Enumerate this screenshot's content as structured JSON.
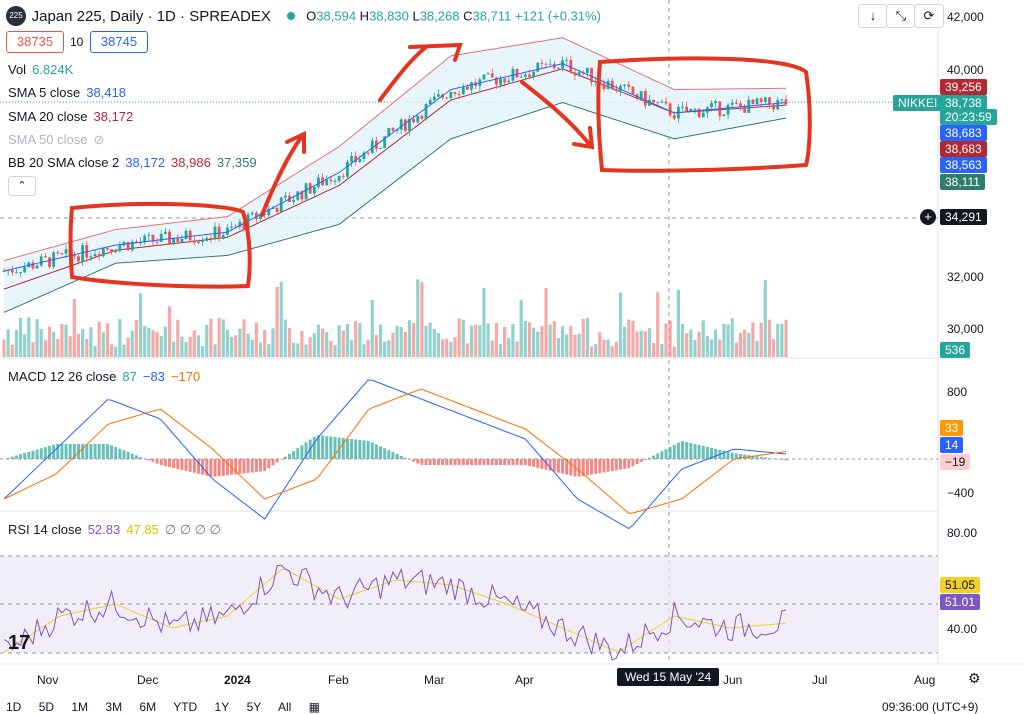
{
  "header": {
    "symbol_badge": "225",
    "title": "Japan 225, Daily · 1D · SPREADEX",
    "ohlc": [
      {
        "label": "O",
        "value": "38,594"
      },
      {
        "label": "H",
        "value": "38,830"
      },
      {
        "label": "L",
        "value": "38,268"
      },
      {
        "label": "C",
        "value": "38,711"
      }
    ],
    "change": "+121 (+0.31%)",
    "bid": "38735",
    "spread": "10",
    "ask": "38745"
  },
  "indicators": {
    "vol": {
      "label": "Vol",
      "value": "6.824K"
    },
    "sma5": {
      "label": "SMA 5 close",
      "value": "38,418"
    },
    "sma20": {
      "label": "SMA 20 close",
      "value": "38,172"
    },
    "sma50": {
      "label": "SMA 50 close"
    },
    "bb": {
      "label": "BB 20 SMA close 2",
      "basis": "38,172",
      "upper": "38,986",
      "lower": "37,359"
    },
    "macd": {
      "label": "MACD 12 26 close",
      "hist": "87",
      "macd": "−83",
      "signal": "−170"
    },
    "rsi": {
      "label": "RSI 14 close",
      "rsi": "52.83",
      "ma": "47.85",
      "extra": "∅ ∅ ∅ ∅"
    }
  },
  "price_axis": {
    "ticks": [
      "42,000",
      "40,000",
      "32,000",
      "30,000"
    ],
    "labels": {
      "bb_upper": "39,256",
      "nikkei": "NIKKEI",
      "last": "38,738",
      "countdown": "20:23:59",
      "sma5": "38,683",
      "sma20": "38,683",
      "sma_other": "38,563",
      "bb_lower": "38,111",
      "crosshair": "34,291",
      "volume": "536"
    }
  },
  "macd_axis": {
    "ticks": [
      "800",
      "−400"
    ],
    "labels": {
      "hist": "33",
      "macd": "14",
      "signal": "−19"
    }
  },
  "rsi_axis": {
    "ticks": [
      "80.00",
      "40.00"
    ],
    "labels": {
      "ma": "51.05",
      "rsi": "51.01"
    }
  },
  "time_axis": {
    "labels": [
      "Nov",
      "Dec",
      "2024",
      "Feb",
      "Mar",
      "Apr",
      "Jun",
      "Jul",
      "Aug"
    ],
    "crosshair": "Wed 15 May '24"
  },
  "bottom_bar": {
    "ranges": [
      "1D",
      "5D",
      "1M",
      "3M",
      "6M",
      "YTD",
      "1Y",
      "5Y",
      "All"
    ],
    "time": "09:36:00 (UTC+9)"
  },
  "colors": {
    "up": "#26a69a",
    "down": "#ef5350",
    "sma5": "#2962ff",
    "sma20": "#b22833",
    "bb": "#2e7d6b",
    "annotation": "#e5341f",
    "rsi": "#7e57c2",
    "rsi_ma": "#f2d024"
  },
  "chart_data": {
    "type": "line",
    "title": "Japan 225, Daily · 1D · SPREADEX",
    "xlabel": "",
    "ylabel": "",
    "ylim": [
      29500,
      42500
    ],
    "x": [
      "Nov",
      "Dec",
      "2024",
      "Feb",
      "Mar",
      "Apr",
      "May",
      "Jun"
    ],
    "series": [
      {
        "name": "SMA 5 close",
        "values": [
          32200,
          33200,
          33700,
          36000,
          39200,
          40200,
          38300,
          38700
        ]
      },
      {
        "name": "SMA 20 close",
        "values": [
          31500,
          33000,
          33500,
          35500,
          38800,
          40000,
          38300,
          38600
        ]
      },
      {
        "name": "BB upper",
        "values": [
          32600,
          33800,
          34300,
          37000,
          40500,
          41200,
          39200,
          39250
        ]
      },
      {
        "name": "BB lower",
        "values": [
          30600,
          32500,
          32800,
          34000,
          37300,
          38700,
          37300,
          38100
        ]
      }
    ],
    "annotations": [
      "consolidation Nov–Dec",
      "uptrend Jan–Mar",
      "decline Apr",
      "consolidation May–Jun"
    ]
  }
}
